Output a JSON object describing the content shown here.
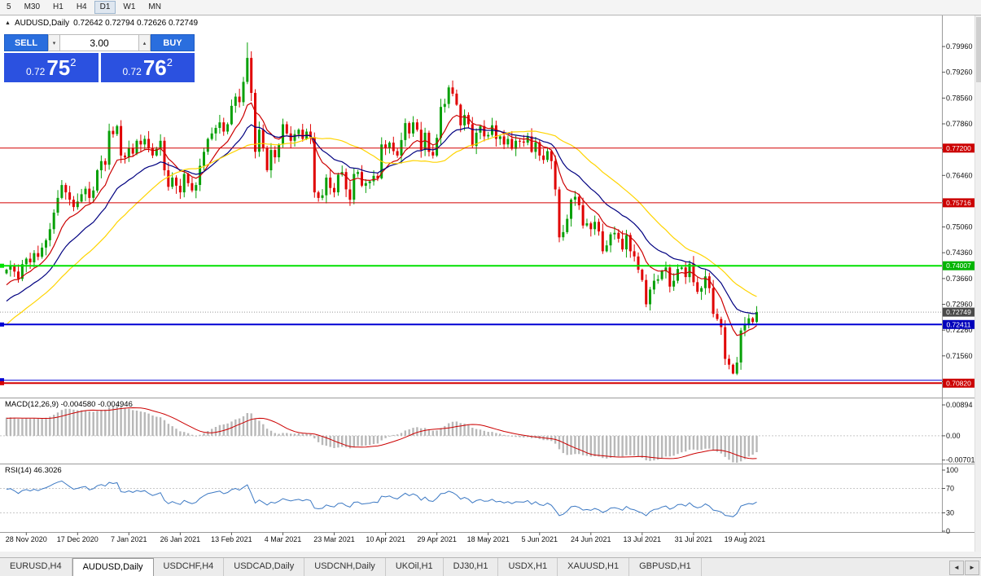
{
  "toolbar": {
    "periods": [
      "5",
      "M30",
      "H1",
      "H4",
      "D1",
      "W1",
      "MN"
    ],
    "active": "D1"
  },
  "chart": {
    "title": "AUDUSD,Daily",
    "ohlc": "0.72642 0.72794 0.72626 0.72749"
  },
  "one_click": {
    "sell_label": "SELL",
    "buy_label": "BUY",
    "lots": "3.00",
    "bid_small": "0.72",
    "bid_big": "75",
    "bid_sup": "2",
    "ask_small": "0.72",
    "ask_big": "76",
    "ask_sup": "2"
  },
  "indicators": {
    "macd": {
      "title": "MACD(12,26,9)",
      "values": "-0.004580 -0.004946"
    },
    "rsi": {
      "title": "RSI(14)",
      "value": "46.3026"
    }
  },
  "tabs": {
    "items": [
      {
        "label": "EURUSD,H4"
      },
      {
        "label": "AUDUSD,Daily",
        "active": true
      },
      {
        "label": "USDCHF,H4"
      },
      {
        "label": "USDCAD,Daily"
      },
      {
        "label": "USDCNH,Daily"
      },
      {
        "label": "UKOil,H1"
      },
      {
        "label": "DJ30,H1"
      },
      {
        "label": "USDX,H1"
      },
      {
        "label": "XAUUSD,H1"
      },
      {
        "label": "GBPUSD,H1"
      }
    ]
  },
  "icons": {
    "collapse": "▲",
    "spin_up": "▴",
    "spin_down": "▾",
    "tab_prev": "◄",
    "tab_next": "►"
  },
  "chart_data": {
    "type": "candlestick",
    "symbol": "AUDUSD",
    "period": "Daily",
    "price_axis": {
      "max": 0.8078,
      "min": 0.7045,
      "ticks": [
        "0.79960",
        "0.79260",
        "0.78560",
        "0.77860",
        "0.77160",
        "0.76460",
        "0.75760",
        "0.75060",
        "0.74360",
        "0.73660",
        "0.72960",
        "0.72260",
        "0.71560",
        "0.70860"
      ]
    },
    "date_labels": [
      {
        "label": "28 Nov 2020",
        "bar": 5
      },
      {
        "label": "17 Dec 2020",
        "bar": 18
      },
      {
        "label": "7 Jan 2021",
        "bar": 31
      },
      {
        "label": "26 Jan 2021",
        "bar": 44
      },
      {
        "label": "13 Feb 2021",
        "bar": 57
      },
      {
        "label": "4 Mar 2021",
        "bar": 70
      },
      {
        "label": "23 Mar 2021",
        "bar": 83
      },
      {
        "label": "10 Apr 2021",
        "bar": 96
      },
      {
        "label": "29 Apr 2021",
        "bar": 109
      },
      {
        "label": "18 May 2021",
        "bar": 122
      },
      {
        "label": "5 Jun 2021",
        "bar": 135
      },
      {
        "label": "24 Jun 2021",
        "bar": 148
      },
      {
        "label": "13 Jul 2021",
        "bar": 161
      },
      {
        "label": "31 Jul 2021",
        "bar": 174
      },
      {
        "label": "19 Aug 2021",
        "bar": 187
      }
    ],
    "pre_closes": [
      0.71,
      0.708,
      0.706,
      0.7105,
      0.713,
      0.711,
      0.7145,
      0.716,
      0.713,
      0.7155,
      0.7185,
      0.717,
      0.7205,
      0.719,
      0.7225,
      0.724,
      0.721,
      0.725,
      0.7265,
      0.7245,
      0.728,
      0.73,
      0.727,
      0.7305,
      0.732,
      0.7295,
      0.733,
      0.7345,
      0.7315,
      0.735,
      0.736,
      0.734,
      0.737,
      0.738
    ],
    "closes": [
      0.739,
      0.74,
      0.7385,
      0.7365,
      0.7405,
      0.742,
      0.741,
      0.7435,
      0.7425,
      0.745,
      0.747,
      0.75,
      0.7545,
      0.7585,
      0.762,
      0.76,
      0.758,
      0.756,
      0.7575,
      0.7595,
      0.761,
      0.7585,
      0.7605,
      0.766,
      0.7685,
      0.7675,
      0.7767,
      0.7758,
      0.778,
      0.77,
      0.7695,
      0.772,
      0.7705,
      0.774,
      0.773,
      0.7745,
      0.772,
      0.77,
      0.7718,
      0.774,
      0.766,
      0.7615,
      0.764,
      0.7618,
      0.76,
      0.765,
      0.7625,
      0.7605,
      0.762,
      0.7672,
      0.771,
      0.7745,
      0.776,
      0.7775,
      0.779,
      0.7765,
      0.7785,
      0.7835,
      0.786,
      0.7845,
      0.79,
      0.7965,
      0.787,
      0.771,
      0.777,
      0.772,
      0.766,
      0.7715,
      0.7695,
      0.773,
      0.7785,
      0.776,
      0.774,
      0.7758,
      0.777,
      0.7745,
      0.7765,
      0.775,
      0.76,
      0.7585,
      0.7592,
      0.764,
      0.7612,
      0.76,
      0.7648,
      0.7655,
      0.7608,
      0.758,
      0.765,
      0.7655,
      0.7618,
      0.7625,
      0.763,
      0.7645,
      0.7638,
      0.773,
      0.772,
      0.7735,
      0.7712,
      0.77,
      0.7742,
      0.7788,
      0.776,
      0.779,
      0.777,
      0.7715,
      0.7762,
      0.771,
      0.77,
      0.7748,
      0.7832,
      0.784,
      0.7885,
      0.7868,
      0.7838,
      0.7782,
      0.781,
      0.7785,
      0.7726,
      0.7762,
      0.778,
      0.7752,
      0.7756,
      0.7782,
      0.7745,
      0.7752,
      0.773,
      0.7745,
      0.7718,
      0.774,
      0.7738,
      0.7735,
      0.7752,
      0.771,
      0.7736,
      0.77,
      0.7688,
      0.7712,
      0.7685,
      0.7608,
      0.7478,
      0.7492,
      0.7528,
      0.758,
      0.7588,
      0.7565,
      0.751,
      0.7516,
      0.75,
      0.752,
      0.7494,
      0.744,
      0.7456,
      0.7486,
      0.749,
      0.7474,
      0.7445,
      0.7484,
      0.744,
      0.7426,
      0.739,
      0.7362,
      0.7296,
      0.7336,
      0.736,
      0.7364,
      0.7386,
      0.7396,
      0.7344,
      0.736,
      0.7392,
      0.7396,
      0.737,
      0.7406,
      0.7356,
      0.733,
      0.734,
      0.7372,
      0.734,
      0.727,
      0.7256,
      0.7234,
      0.7148,
      0.7132,
      0.7108,
      0.7138,
      0.7225,
      0.7242,
      0.7258,
      0.7248,
      0.7275
    ],
    "wick_overrides": {
      "61": {
        "h": 0.8007
      },
      "112": {
        "h": 0.7891
      },
      "162": {
        "l": 0.7288
      },
      "184": {
        "l": 0.7106
      }
    },
    "candle_colors": {
      "up": "#08a008",
      "down": "#e00000"
    },
    "moving_averages": [
      {
        "name": "fast",
        "type": "ema",
        "period": 10,
        "color": "#cc0000"
      },
      {
        "name": "mid",
        "type": "ema",
        "period": 21,
        "color": "#000080"
      },
      {
        "name": "slow",
        "type": "sma",
        "period": 34,
        "color": "#ffd400"
      }
    ],
    "hlines": [
      {
        "value": 0.772,
        "color": "#d40000",
        "width": 1
      },
      {
        "value": 0.75716,
        "color": "#d40000",
        "width": 1
      },
      {
        "value": 0.74007,
        "color": "#00e100",
        "width": 2,
        "handle": true
      },
      {
        "value": 0.72411,
        "color": "#0000d4",
        "width": 2,
        "handle": true
      },
      {
        "value": 0.709,
        "color": "#0000d4",
        "width": 1,
        "handle": true
      },
      {
        "value": 0.7082,
        "color": "#d40000",
        "width": 2,
        "handle": true
      }
    ],
    "current_price": 0.72749,
    "badges": [
      {
        "label": "0.77200",
        "value": 0.772,
        "color": "#cc0000"
      },
      {
        "label": "0.75716",
        "value": 0.75716,
        "color": "#cc0000"
      },
      {
        "label": "0.74007",
        "value": 0.74007,
        "color": "#00b400"
      },
      {
        "label": "0.72749",
        "value": 0.72749,
        "color": "#4a4a4a"
      },
      {
        "label": "0.72411",
        "value": 0.72411,
        "color": "#0000bb"
      },
      {
        "label": "0.70820",
        "value": 0.7082,
        "color": "#cc0000"
      }
    ],
    "macd": {
      "fast": 12,
      "slow": 26,
      "signal": 9,
      "hist_color": "#b8b8b8",
      "signal_color": "#cc0000",
      "axis": {
        "max": 0.0106,
        "min": -0.0078
      },
      "ticks": [
        {
          "label": "0.00894",
          "value": 0.00894
        },
        {
          "label": "0.00",
          "value": 0
        },
        {
          "label": "-0.00701",
          "value": -0.00701
        }
      ]
    },
    "rsi": {
      "period": 14,
      "color": "#3b78c3",
      "levels": [
        70,
        30
      ],
      "axis_ticks": [
        {
          "label": "100",
          "value": 100
        },
        {
          "label": "70",
          "value": 70
        },
        {
          "label": "30",
          "value": 30
        },
        {
          "label": "0",
          "value": 0
        }
      ]
    }
  }
}
